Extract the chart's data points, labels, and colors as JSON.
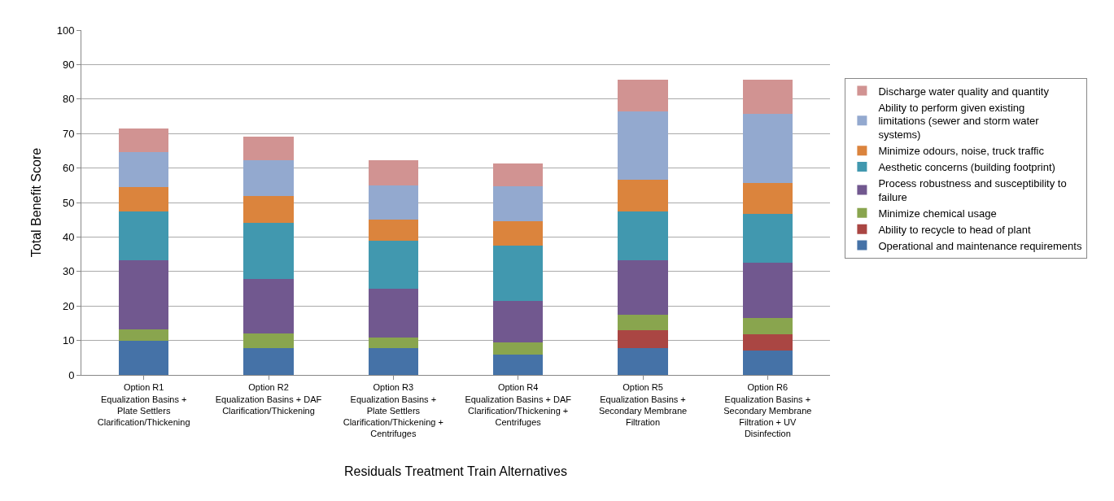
{
  "chart_data": {
    "type": "bar",
    "stacked": true,
    "xlabel": "Residuals Treatment Train Alternatives",
    "ylabel": "Total Benefit Score",
    "categories": [
      "Option R1\nEqualization Basins +\nPlate Settlers\nClarification/Thickening",
      "Option R2\nEqualization Basins + DAF\nClarification/Thickening",
      "Option R3\nEqualization Basins +\nPlate Settlers\nClarification/Thickening +\nCentrifuges",
      "Option R4\nEqualization Basins + DAF\nClarification/Thickening +\nCentrifuges",
      "Option R5\nEqualization Basins +\nSecondary Membrane\nFiltration",
      "Option R6\nEqualization Basins +\nSecondary Membrane\nFiltration + UV\nDisinfection"
    ],
    "series": [
      {
        "name": "Operational and maintenance requirements",
        "color": "#4572a7",
        "values": [
          10,
          7.8,
          7.8,
          6,
          7.8,
          7
        ]
      },
      {
        "name": "Ability to recycle to head of plant",
        "color": "#aa4643",
        "values": [
          0,
          0,
          0,
          0,
          5.1,
          4.8
        ]
      },
      {
        "name": "Minimize chemical usage",
        "color": "#89a54e",
        "values": [
          3.3,
          4.2,
          3,
          3.5,
          4.6,
          4.6
        ]
      },
      {
        "name": "Process robustness and susceptibility to failure",
        "color": "#71588f",
        "values": [
          20,
          15.8,
          14.2,
          12,
          15.8,
          16.1
        ]
      },
      {
        "name": "Aesthetic concerns (building footprint)",
        "color": "#4198af",
        "values": [
          14.2,
          16.2,
          13.9,
          16,
          14.2,
          14.2
        ]
      },
      {
        "name": "Minimize odours, noise, truck traffic",
        "color": "#db843d",
        "values": [
          7.1,
          8,
          6.1,
          7.1,
          9,
          8.9
        ]
      },
      {
        "name": "Ability to perform given existing limitations (sewer and storm water systems)",
        "color": "#93a9cf",
        "values": [
          10,
          10.2,
          10,
          10.1,
          19.9,
          20
        ]
      },
      {
        "name": "Discharge water quality and quantity",
        "color": "#d19392",
        "values": [
          6.8,
          7,
          7.2,
          6.7,
          9.1,
          9.9
        ]
      }
    ],
    "ylim": [
      0,
      100
    ],
    "yticks": [
      0,
      10,
      20,
      30,
      40,
      50,
      60,
      70,
      80,
      90,
      100
    ],
    "grid": "y",
    "legend": "right"
  }
}
